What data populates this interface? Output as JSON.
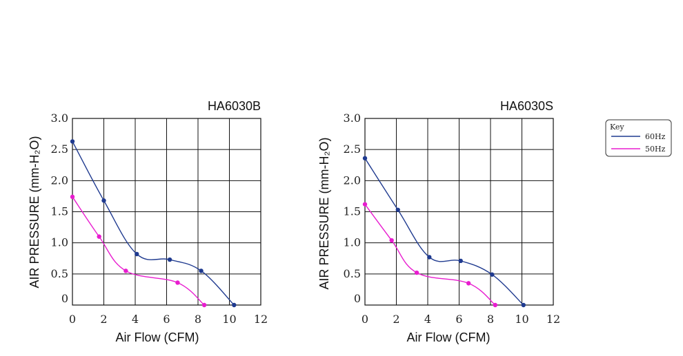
{
  "key": {
    "title": "Key",
    "items": [
      {
        "label": "60Hz",
        "color": "#1f3a8f"
      },
      {
        "label": "50Hz",
        "color": "#e81ccf"
      }
    ]
  },
  "chart_data": [
    {
      "type": "line",
      "title": "HA6030B",
      "xlabel": "Air Flow (CFM)",
      "ylabel": "AIR PRESSURE (mm-H₂O)",
      "xlim": [
        0,
        12
      ],
      "ylim": [
        0,
        3.0
      ],
      "xticks": [
        "0",
        "2",
        "4",
        "6",
        "8",
        "10",
        "12"
      ],
      "yticks": [
        "0",
        "0.5",
        "1.0",
        "1.5",
        "2.0",
        "2.5",
        "3.0"
      ],
      "grid": true,
      "series": [
        {
          "name": "60Hz",
          "color": "#1f3a8f",
          "x": [
            0,
            2.0,
            4.1,
            6.2,
            8.2,
            10.3
          ],
          "y": [
            2.63,
            1.68,
            0.82,
            0.73,
            0.55,
            0
          ]
        },
        {
          "name": "50Hz",
          "color": "#e81ccf",
          "x": [
            0,
            1.7,
            3.4,
            6.7,
            8.4
          ],
          "y": [
            1.74,
            1.1,
            0.55,
            0.36,
            0
          ]
        }
      ]
    },
    {
      "type": "line",
      "title": "HA6030S",
      "xlabel": "Air Flow (CFM)",
      "ylabel": "AIR PRESSURE (mm-H₂O)",
      "xlim": [
        0,
        12
      ],
      "ylim": [
        0,
        3.0
      ],
      "xticks": [
        "0",
        "2",
        "4",
        "6",
        "8",
        "10",
        "12"
      ],
      "yticks": [
        "0",
        "0.5",
        "1.0",
        "1.5",
        "2.0",
        "2.5",
        "3.0"
      ],
      "grid": true,
      "series": [
        {
          "name": "60Hz",
          "color": "#1f3a8f",
          "x": [
            0,
            2.1,
            4.1,
            6.1,
            8.1,
            10.1
          ],
          "y": [
            2.36,
            1.53,
            0.77,
            0.71,
            0.49,
            0
          ]
        },
        {
          "name": "50Hz",
          "color": "#e81ccf",
          "x": [
            0,
            1.7,
            3.3,
            6.6,
            8.3
          ],
          "y": [
            1.62,
            1.04,
            0.52,
            0.35,
            0
          ]
        }
      ]
    }
  ]
}
